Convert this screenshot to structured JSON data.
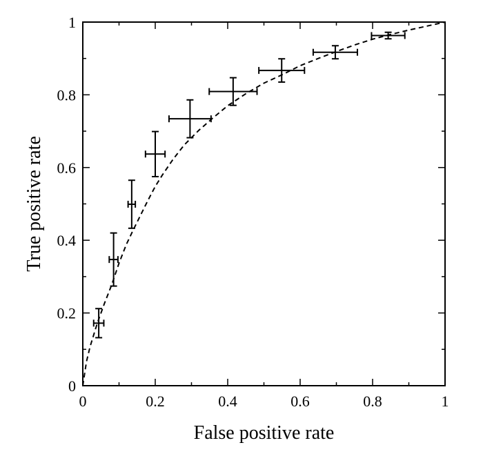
{
  "chart_data": {
    "type": "scatter",
    "title": "",
    "xlabel": "False positive rate",
    "ylabel": "True positive rate",
    "xlim": [
      0,
      1
    ],
    "ylim": [
      0,
      1
    ],
    "grid": false,
    "x_ticks": [
      "0",
      "0.2",
      "0.4",
      "0.6",
      "0.8",
      "1"
    ],
    "y_ticks": [
      "0",
      "0.2",
      "0.4",
      "0.6",
      "0.8",
      "1"
    ],
    "x_tick_values": [
      0,
      0.2,
      0.4,
      0.6,
      0.8,
      1
    ],
    "y_tick_values": [
      0,
      0.2,
      0.4,
      0.6,
      0.8,
      1
    ],
    "series": [
      {
        "points": [
          {
            "x": 0.044,
            "y": 0.172,
            "x_err": 0.014,
            "y_err": 0.04
          },
          {
            "x": 0.085,
            "y": 0.347,
            "x_err": 0.012,
            "y_err": 0.073
          },
          {
            "x": 0.135,
            "y": 0.499,
            "x_err": 0.01,
            "y_err": 0.066
          },
          {
            "x": 0.2,
            "y": 0.637,
            "x_err": 0.027,
            "y_err": 0.062
          },
          {
            "x": 0.296,
            "y": 0.734,
            "x_err": 0.058,
            "y_err": 0.052
          },
          {
            "x": 0.415,
            "y": 0.809,
            "x_err": 0.066,
            "y_err": 0.038
          },
          {
            "x": 0.549,
            "y": 0.867,
            "x_err": 0.063,
            "y_err": 0.032
          },
          {
            "x": 0.697,
            "y": 0.917,
            "x_err": 0.061,
            "y_err": 0.018
          },
          {
            "x": 0.843,
            "y": 0.963,
            "x_err": 0.046,
            "y_err": 0.009
          }
        ]
      }
    ],
    "fit_curve": {
      "style": "dashed",
      "points": [
        [
          0,
          0
        ],
        [
          0.01,
          0.066
        ],
        [
          0.02,
          0.107
        ],
        [
          0.04,
          0.172
        ],
        [
          0.06,
          0.227
        ],
        [
          0.08,
          0.278
        ],
        [
          0.1,
          0.337
        ],
        [
          0.12,
          0.388
        ],
        [
          0.14,
          0.43
        ],
        [
          0.16,
          0.47
        ],
        [
          0.18,
          0.51
        ],
        [
          0.2,
          0.548
        ],
        [
          0.22,
          0.58
        ],
        [
          0.25,
          0.624
        ],
        [
          0.28,
          0.662
        ],
        [
          0.32,
          0.702
        ],
        [
          0.36,
          0.737
        ],
        [
          0.4,
          0.77
        ],
        [
          0.45,
          0.803
        ],
        [
          0.5,
          0.832
        ],
        [
          0.55,
          0.855
        ],
        [
          0.6,
          0.88
        ],
        [
          0.65,
          0.9
        ],
        [
          0.7,
          0.919
        ],
        [
          0.75,
          0.937
        ],
        [
          0.8,
          0.953
        ],
        [
          0.85,
          0.966
        ],
        [
          0.9,
          0.978
        ],
        [
          0.95,
          0.989
        ],
        [
          1.0,
          1.0
        ]
      ]
    }
  }
}
